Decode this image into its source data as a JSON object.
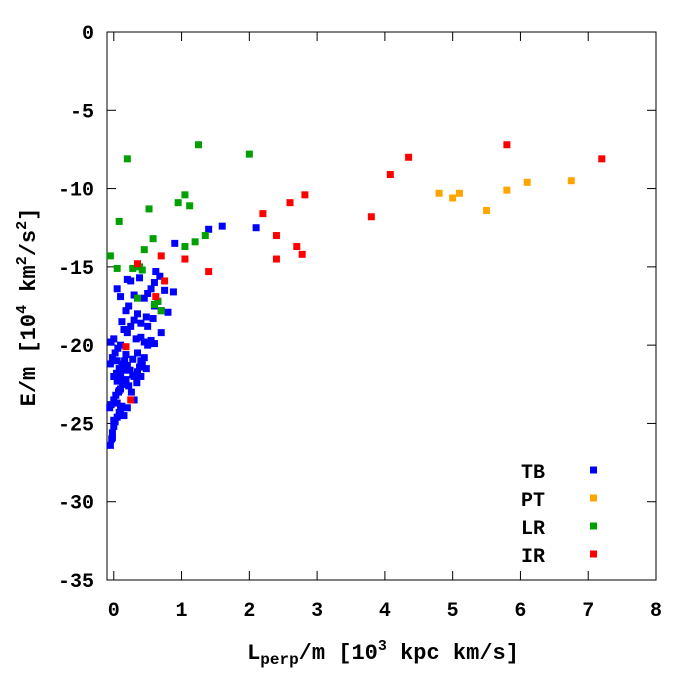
{
  "chart_data": {
    "type": "scatter",
    "xlabel": {
      "main": "L",
      "sub": "perp",
      "rest": "/m [10",
      "sup": "3",
      "tail": " kpc km/s]"
    },
    "ylabel": {
      "main": "E/m [10",
      "sup1": "4",
      "mid": " km",
      "sup2": "2",
      "mid2": "/s",
      "sup3": "2",
      "tail": "]"
    },
    "xlim": [
      -0.1,
      8
    ],
    "ylim": [
      -35,
      0
    ],
    "xticks": [
      "0",
      "1",
      "2",
      "3",
      "4",
      "5",
      "6",
      "7",
      "8"
    ],
    "xtick_values": [
      0,
      1,
      2,
      3,
      4,
      5,
      6,
      7,
      8
    ],
    "yticks": [
      "0",
      "-5",
      "-10",
      "-15",
      "-20",
      "-25",
      "-30",
      "-35"
    ],
    "ytick_values": [
      0,
      -5,
      -10,
      -15,
      -20,
      -25,
      -30,
      -35
    ],
    "grid": false,
    "legend_position": "bottom-right",
    "series": [
      {
        "name": "TB",
        "color": "#0000ff",
        "points": [
          [
            -0.05,
            -26.4
          ],
          [
            -0.03,
            -26.0
          ],
          [
            -0.02,
            -25.6
          ],
          [
            0.0,
            -25.2
          ],
          [
            0.02,
            -24.9
          ],
          [
            0.05,
            -24.6
          ],
          [
            0.08,
            -24.3
          ],
          [
            0.1,
            -24.1
          ],
          [
            -0.06,
            -24.0
          ],
          [
            -0.04,
            -23.8
          ],
          [
            0.0,
            -23.5
          ],
          [
            0.03,
            -23.2
          ],
          [
            0.07,
            -23.0
          ],
          [
            0.1,
            -22.8
          ],
          [
            0.13,
            -22.5
          ],
          [
            0.15,
            -22.3
          ],
          [
            0.0,
            -22.0
          ],
          [
            0.04,
            -21.8
          ],
          [
            0.08,
            -21.5
          ],
          [
            0.12,
            -21.2
          ],
          [
            0.16,
            -21.0
          ],
          [
            0.2,
            -21.3
          ],
          [
            0.24,
            -21.6
          ],
          [
            0.28,
            -21.9
          ],
          [
            -0.05,
            -21.2
          ],
          [
            -0.02,
            -20.8
          ],
          [
            0.02,
            -20.5
          ],
          [
            0.06,
            -20.2
          ],
          [
            0.1,
            -20.0
          ],
          [
            -0.04,
            -19.8
          ],
          [
            0.0,
            -19.6
          ],
          [
            0.05,
            -21.0
          ],
          [
            0.18,
            -22.2
          ],
          [
            0.22,
            -22.6
          ],
          [
            0.26,
            -23.0
          ],
          [
            0.3,
            -23.5
          ],
          [
            0.2,
            -24.0
          ],
          [
            0.15,
            -24.5
          ],
          [
            0.12,
            -23.9
          ],
          [
            0.08,
            -22.9
          ],
          [
            0.3,
            -22.0
          ],
          [
            0.35,
            -21.7
          ],
          [
            0.38,
            -21.4
          ],
          [
            0.42,
            -21.1
          ],
          [
            0.45,
            -20.8
          ],
          [
            0.48,
            -21.5
          ],
          [
            0.4,
            -22.0
          ],
          [
            0.34,
            -22.4
          ],
          [
            0.2,
            -19.2
          ],
          [
            0.25,
            -18.8
          ],
          [
            0.3,
            -18.4
          ],
          [
            0.35,
            -18.0
          ],
          [
            0.4,
            -19.5
          ],
          [
            0.45,
            -19.8
          ],
          [
            0.5,
            -20.0
          ],
          [
            0.55,
            -19.7
          ],
          [
            0.15,
            -19.0
          ],
          [
            0.12,
            -18.5
          ],
          [
            0.18,
            -17.8
          ],
          [
            0.22,
            -17.5
          ],
          [
            0.4,
            -18.6
          ],
          [
            0.48,
            -18.2
          ],
          [
            0.5,
            -18.8
          ],
          [
            0.58,
            -18.3
          ],
          [
            0.6,
            -17.5
          ],
          [
            0.65,
            -17.2
          ],
          [
            0.7,
            -17.8
          ],
          [
            0.75,
            -16.5
          ],
          [
            0.8,
            -17.9
          ],
          [
            0.88,
            -16.6
          ],
          [
            0.6,
            -16.0
          ],
          [
            0.55,
            -16.4
          ],
          [
            0.5,
            -16.7
          ],
          [
            0.45,
            -17.0
          ],
          [
            0.3,
            -16.8
          ],
          [
            0.25,
            -15.9
          ],
          [
            0.2,
            -15.8
          ],
          [
            0.1,
            -16.9
          ],
          [
            0.05,
            -16.4
          ],
          [
            0.38,
            -15.7
          ],
          [
            0.62,
            -15.3
          ],
          [
            0.68,
            -15.6
          ],
          [
            0.7,
            -19.2
          ],
          [
            0.6,
            -19.9
          ],
          [
            0.9,
            -13.5
          ],
          [
            1.4,
            -12.6
          ],
          [
            1.6,
            -12.4
          ],
          [
            2.1,
            -12.5
          ],
          [
            0.35,
            -20.5
          ],
          [
            0.4,
            -21.0
          ],
          [
            0.28,
            -20.9
          ],
          [
            0.33,
            -19.6
          ],
          [
            0.1,
            -21.9
          ],
          [
            0.15,
            -21.6
          ],
          [
            0.05,
            -22.3
          ],
          [
            0.18,
            -20.6
          ],
          [
            0.0,
            -24.8
          ],
          [
            0.05,
            -23.7
          ],
          [
            -0.02,
            -25.9
          ],
          [
            0.1,
            -22.0
          ]
        ]
      },
      {
        "name": "PT",
        "color": "#ffa500",
        "points": [
          [
            4.8,
            -10.3
          ],
          [
            5.0,
            -10.6
          ],
          [
            5.1,
            -10.3
          ],
          [
            5.5,
            -11.4
          ],
          [
            5.8,
            -10.1
          ],
          [
            6.1,
            -9.6
          ],
          [
            6.75,
            -9.5
          ]
        ]
      },
      {
        "name": "LR",
        "color": "#00a000",
        "points": [
          [
            -0.05,
            -14.3
          ],
          [
            0.05,
            -15.1
          ],
          [
            0.08,
            -12.1
          ],
          [
            0.2,
            -8.1
          ],
          [
            0.28,
            -15.1
          ],
          [
            0.35,
            -17.0
          ],
          [
            0.38,
            -15.0
          ],
          [
            0.45,
            -13.9
          ],
          [
            0.52,
            -11.3
          ],
          [
            0.58,
            -13.2
          ],
          [
            0.6,
            -17.4
          ],
          [
            0.7,
            -17.8
          ],
          [
            0.95,
            -10.9
          ],
          [
            1.05,
            -10.4
          ],
          [
            1.05,
            -13.7
          ],
          [
            1.12,
            -11.1
          ],
          [
            1.2,
            -13.4
          ],
          [
            1.25,
            -7.2
          ],
          [
            1.35,
            -13.0
          ],
          [
            2.0,
            -7.8
          ],
          [
            0.42,
            -15.2
          ],
          [
            0.65,
            -17.2
          ]
        ]
      },
      {
        "name": "IR",
        "color": "#ff0000",
        "points": [
          [
            0.18,
            -20.1
          ],
          [
            0.25,
            -23.5
          ],
          [
            0.35,
            -14.8
          ],
          [
            0.62,
            -16.9
          ],
          [
            0.7,
            -14.3
          ],
          [
            0.75,
            -15.9
          ],
          [
            1.05,
            -14.5
          ],
          [
            1.4,
            -15.3
          ],
          [
            2.2,
            -11.6
          ],
          [
            2.4,
            -13.0
          ],
          [
            2.4,
            -14.5
          ],
          [
            2.6,
            -10.9
          ],
          [
            2.7,
            -13.7
          ],
          [
            2.78,
            -14.2
          ],
          [
            2.82,
            -10.4
          ],
          [
            3.8,
            -11.8
          ],
          [
            4.08,
            -9.1
          ],
          [
            4.35,
            -8.0
          ],
          [
            5.8,
            -7.2
          ],
          [
            7.2,
            -8.1
          ]
        ]
      }
    ]
  }
}
